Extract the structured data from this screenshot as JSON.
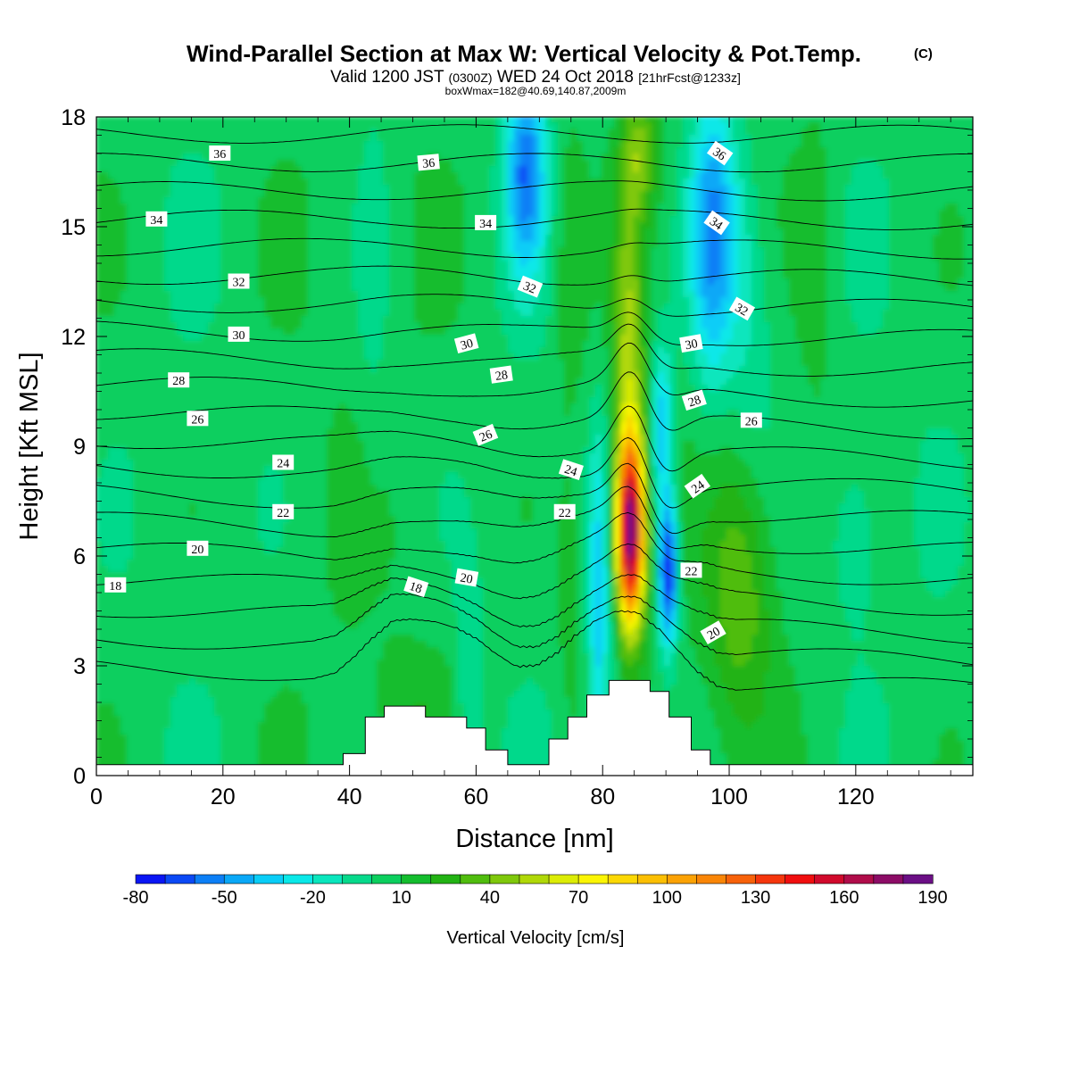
{
  "title": {
    "main": "Wind-Parallel Section at Max W: Vertical Velocity & Pot.Temp.",
    "copyright": "(C)",
    "valid_prefix": "Valid 1200 JST",
    "valid_utc": "(0300Z)",
    "valid_date": "WED 24 Oct 2018",
    "forecast": "[21hrFcst@1233z]",
    "box": "boxWmax=182@40.69,140.87,2009m"
  },
  "chart_data": {
    "type": "heatmap",
    "xlabel": "Distance [nm]",
    "ylabel": "Height [Kft MSL]",
    "xlim": [
      0,
      138.5
    ],
    "ylim": [
      0,
      18
    ],
    "xticks": [
      "0",
      "20",
      "40",
      "60",
      "80",
      "100",
      "120"
    ],
    "xtick_values": [
      0,
      20,
      40,
      60,
      80,
      100,
      120
    ],
    "yticks": [
      "0",
      "3",
      "6",
      "9",
      "12",
      "15",
      "18"
    ],
    "ytick_values": [
      0,
      3,
      6,
      9,
      12,
      15,
      18
    ],
    "colorbar": {
      "title": "Vertical Velocity [cm/s]",
      "tick_labels": [
        "-80",
        "-50",
        "-20",
        "10",
        "40",
        "70",
        "100",
        "130",
        "160",
        "190"
      ],
      "levels": [
        -80,
        -70,
        -60,
        -50,
        -40,
        -30,
        -20,
        -10,
        0,
        10,
        20,
        30,
        40,
        50,
        60,
        70,
        80,
        90,
        100,
        110,
        120,
        130,
        140,
        150,
        160,
        170,
        180,
        190
      ],
      "colors": [
        "#0a16f4",
        "#0b49f5",
        "#0c7ff6",
        "#0aa8f7",
        "#09cdf7",
        "#0ae8e8",
        "#0ae6bd",
        "#06d98b",
        "#0ccf5e",
        "#14bd2e",
        "#22b314",
        "#50bd0e",
        "#7fc80b",
        "#b0d808",
        "#dcec05",
        "#fbf504",
        "#fbd804",
        "#fbbf03",
        "#fba204",
        "#f98506",
        "#f7620a",
        "#f5360d",
        "#f00e0f",
        "#d10a2c",
        "#b00d4a",
        "#8c0c66",
        "#6b0f85"
      ]
    },
    "terrain": [
      [
        0,
        0.3
      ],
      [
        39,
        0.3
      ],
      [
        39,
        0.6
      ],
      [
        42.5,
        0.6
      ],
      [
        42.5,
        1.6
      ],
      [
        45.5,
        1.6
      ],
      [
        45.5,
        1.9
      ],
      [
        52,
        1.9
      ],
      [
        52,
        1.6
      ],
      [
        58.5,
        1.6
      ],
      [
        58.5,
        1.3
      ],
      [
        61.5,
        1.3
      ],
      [
        61.5,
        0.7
      ],
      [
        65,
        0.7
      ],
      [
        65,
        0.3
      ],
      [
        71.5,
        0.3
      ],
      [
        71.5,
        1.0
      ],
      [
        74.5,
        1.0
      ],
      [
        74.5,
        1.6
      ],
      [
        77.5,
        1.6
      ],
      [
        77.5,
        2.2
      ],
      [
        81,
        2.2
      ],
      [
        81,
        2.6
      ],
      [
        87.5,
        2.6
      ],
      [
        87.5,
        2.3
      ],
      [
        90.5,
        2.3
      ],
      [
        90.5,
        1.6
      ],
      [
        94,
        1.6
      ],
      [
        94,
        0.7
      ],
      [
        97,
        0.7
      ],
      [
        97,
        0.3
      ],
      [
        138.5,
        0.3
      ]
    ],
    "theta_contour_levels": [
      15,
      16,
      17,
      18,
      19,
      20,
      21,
      22,
      23,
      24,
      25,
      26,
      27,
      28,
      29,
      30,
      31,
      32,
      33,
      34,
      35,
      36,
      37,
      38
    ],
    "theta_labels": [
      {
        "text": "36",
        "x": 19.5,
        "y": 17.0,
        "rot": 0
      },
      {
        "text": "36",
        "x": 52.5,
        "y": 16.75,
        "rot": -5
      },
      {
        "text": "36",
        "x": 98.5,
        "y": 17.0,
        "rot": 35
      },
      {
        "text": "34",
        "x": 9.5,
        "y": 15.2,
        "rot": 0
      },
      {
        "text": "34",
        "x": 61.5,
        "y": 15.1,
        "rot": 0
      },
      {
        "text": "34",
        "x": 98.0,
        "y": 15.1,
        "rot": 35
      },
      {
        "text": "32",
        "x": 22.5,
        "y": 13.5,
        "rot": 0
      },
      {
        "text": "32",
        "x": 68.5,
        "y": 13.35,
        "rot": 22
      },
      {
        "text": "32",
        "x": 102.0,
        "y": 12.75,
        "rot": 30
      },
      {
        "text": "30",
        "x": 22.5,
        "y": 12.05,
        "rot": 0
      },
      {
        "text": "30",
        "x": 58.5,
        "y": 11.8,
        "rot": -15
      },
      {
        "text": "30",
        "x": 94.0,
        "y": 11.8,
        "rot": -10
      },
      {
        "text": "28",
        "x": 13.0,
        "y": 10.8,
        "rot": 0
      },
      {
        "text": "28",
        "x": 64.0,
        "y": 10.95,
        "rot": -8
      },
      {
        "text": "28",
        "x": 94.5,
        "y": 10.25,
        "rot": -18
      },
      {
        "text": "26",
        "x": 16.0,
        "y": 9.75,
        "rot": 0
      },
      {
        "text": "26",
        "x": 61.5,
        "y": 9.3,
        "rot": -22
      },
      {
        "text": "26",
        "x": 103.5,
        "y": 9.7,
        "rot": 0
      },
      {
        "text": "24",
        "x": 29.5,
        "y": 8.55,
        "rot": 0
      },
      {
        "text": "24",
        "x": 75.0,
        "y": 8.35,
        "rot": 18
      },
      {
        "text": "24",
        "x": 95.0,
        "y": 7.9,
        "rot": -35
      },
      {
        "text": "22",
        "x": 29.5,
        "y": 7.2,
        "rot": 0
      },
      {
        "text": "22",
        "x": 74.0,
        "y": 7.2,
        "rot": 0
      },
      {
        "text": "22",
        "x": 94.0,
        "y": 5.6,
        "rot": 0
      },
      {
        "text": "20",
        "x": 16.0,
        "y": 6.2,
        "rot": 0
      },
      {
        "text": "20",
        "x": 58.5,
        "y": 5.4,
        "rot": 10
      },
      {
        "text": "20",
        "x": 97.5,
        "y": 3.9,
        "rot": -30
      },
      {
        "text": "18",
        "x": 3.0,
        "y": 5.2,
        "rot": 0
      },
      {
        "text": "18",
        "x": 50.5,
        "y": 5.15,
        "rot": 18
      }
    ]
  }
}
